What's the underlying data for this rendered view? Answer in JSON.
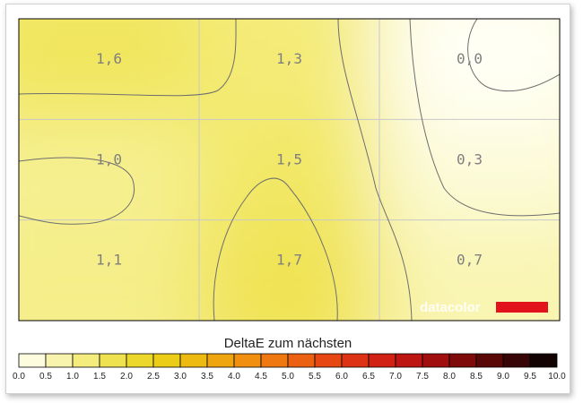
{
  "chart_data": {
    "type": "heatmap",
    "rows": 3,
    "cols": 3,
    "values": [
      [
        1.6,
        1.3,
        0.0
      ],
      [
        1.0,
        1.5,
        0.3
      ],
      [
        1.1,
        1.7,
        0.7
      ]
    ],
    "cell_labels": [
      [
        "1,6",
        "1,3",
        "0,0"
      ],
      [
        "1,0",
        "1,5",
        "0,3"
      ],
      [
        "1,1",
        "1,7",
        "0,7"
      ]
    ],
    "color_scale": {
      "title": "DeltaE zum nächsten",
      "range": [
        0,
        10
      ],
      "ticks": [
        "0.0",
        "0.5",
        "1.0",
        "1.5",
        "2.0",
        "2.5",
        "3.0",
        "3.5",
        "4.0",
        "4.5",
        "5.0",
        "5.5",
        "6.0",
        "6.5",
        "7.0",
        "7.5",
        "8.0",
        "8.5",
        "9.0",
        "9.5",
        "10.0"
      ],
      "colors": [
        "#fffff5",
        "#fbf8c8",
        "#f6f092",
        "#f2e866",
        "#ecdc3a",
        "#ead41c",
        "#ecc412",
        "#eeb010",
        "#f09a10",
        "#f08410",
        "#ee6c10",
        "#ea5412",
        "#e43c14",
        "#d82814",
        "#c81a14",
        "#b01010",
        "#900c0c",
        "#6c0808",
        "#480606",
        "#260404",
        "#000000"
      ]
    },
    "grid": true,
    "contours": true,
    "watermark": "datacolor"
  }
}
